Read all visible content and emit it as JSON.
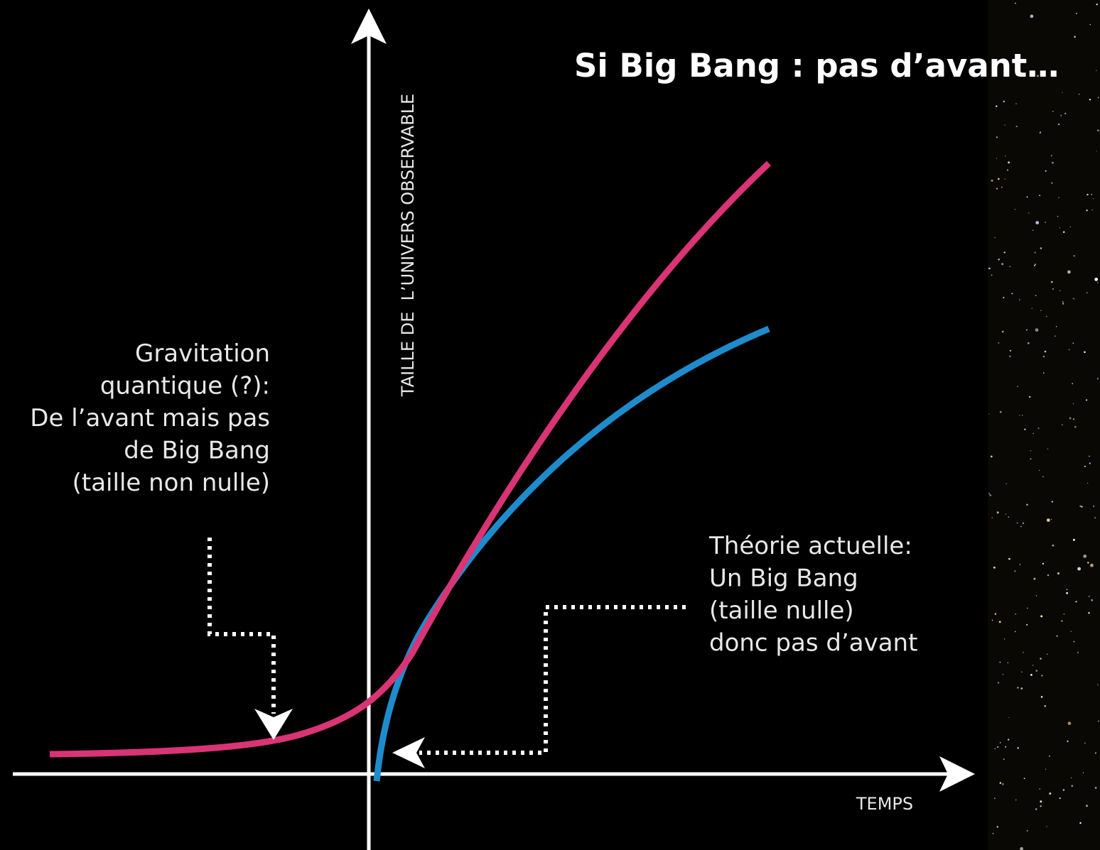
{
  "title": "Si Big Bang : pas d’avant…",
  "axes": {
    "y_label": "TAILLE DE  L’UNIVERS OBSERVABLE",
    "x_label": "TEMPS"
  },
  "annotations": [
    {
      "lines": [
        "Gravitation",
        "quantique (?):",
        "De l’avant mais pas",
        "de Big Bang",
        "(taille non nulle)"
      ]
    },
    {
      "lines": [
        "Théorie actuelle:",
        "Un Big Bang",
        "(taille nulle)",
        "donc pas d’avant"
      ]
    }
  ]
}
